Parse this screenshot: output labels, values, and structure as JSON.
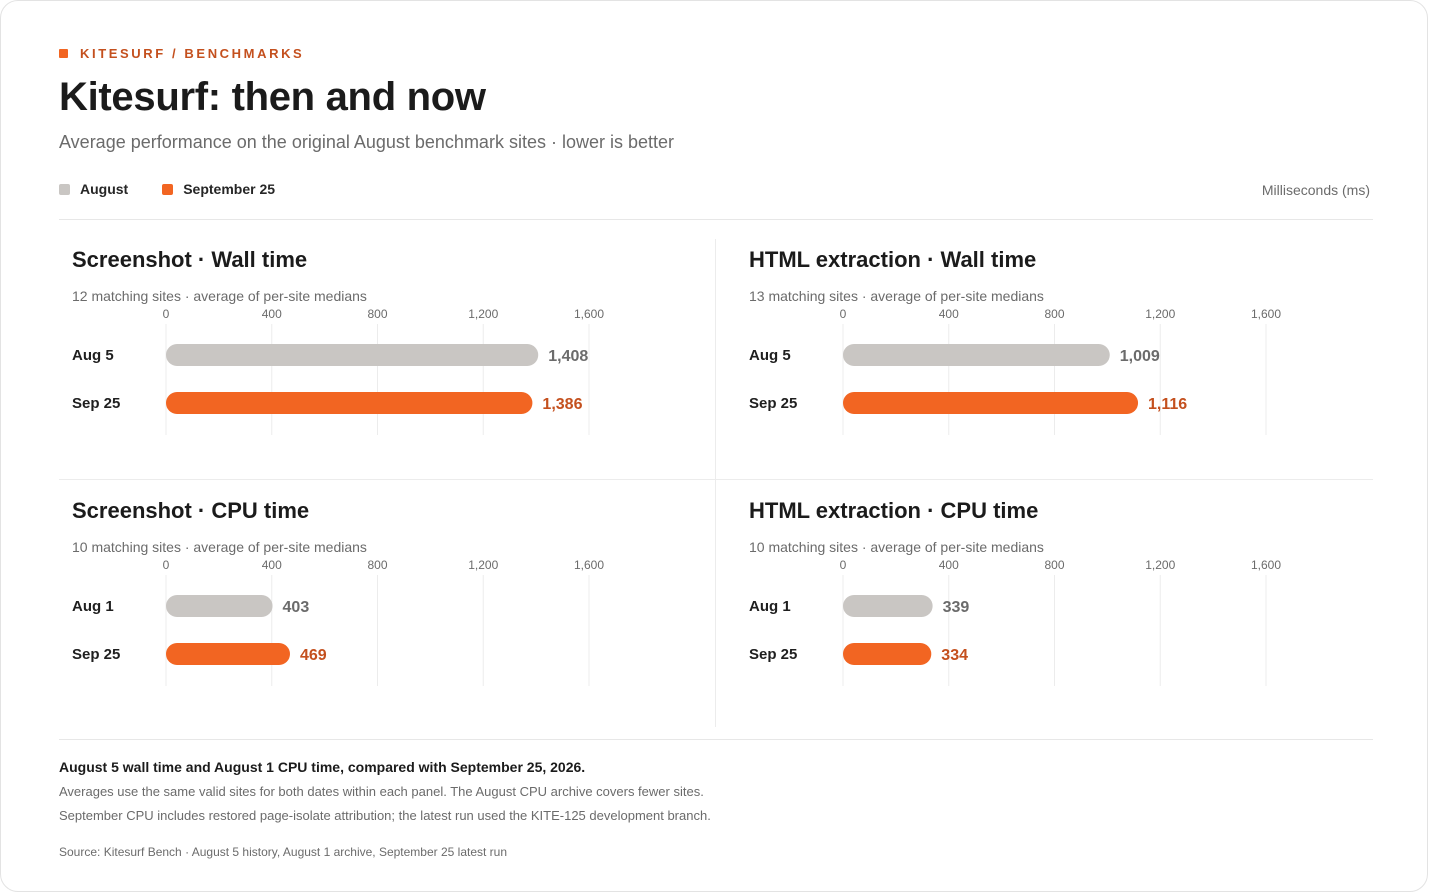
{
  "header": {
    "eyebrow": "KITESURF / BENCHMARKS",
    "title": "Kitesurf: then and now",
    "subtitle": "Average performance on the original August benchmark sites · lower is better",
    "units": "Milliseconds (ms)"
  },
  "legend": {
    "items": [
      {
        "label": "August",
        "color": "#c9c6c3"
      },
      {
        "label": "September 25",
        "color": "#f26522"
      }
    ]
  },
  "colors": {
    "august": "#c9c6c3",
    "september": "#f26522",
    "august_value": "#6b6b6b",
    "september_value": "#c4501e"
  },
  "chart_data": [
    {
      "type": "bar",
      "orientation": "horizontal",
      "title": "Screenshot · Wall time",
      "subtitle": "12 matching sites · average of per-site medians",
      "categories": [
        "Aug 5",
        "Sep 25"
      ],
      "values": [
        1408,
        1386
      ],
      "value_labels": [
        "1,408",
        "1,386"
      ],
      "xlim": [
        0,
        1600
      ],
      "ticks": [
        0,
        400,
        800,
        1200,
        1600
      ],
      "tick_labels": [
        "0",
        "400",
        "800",
        "1,200",
        "1,600"
      ],
      "grid": true
    },
    {
      "type": "bar",
      "orientation": "horizontal",
      "title": "HTML extraction · Wall time",
      "subtitle": "13 matching sites · average of per-site medians",
      "categories": [
        "Aug 5",
        "Sep 25"
      ],
      "values": [
        1009,
        1116
      ],
      "value_labels": [
        "1,009",
        "1,116"
      ],
      "xlim": [
        0,
        1600
      ],
      "ticks": [
        0,
        400,
        800,
        1200,
        1600
      ],
      "tick_labels": [
        "0",
        "400",
        "800",
        "1,200",
        "1,600"
      ],
      "grid": true
    },
    {
      "type": "bar",
      "orientation": "horizontal",
      "title": "Screenshot · CPU time",
      "subtitle": "10 matching sites · average of per-site medians",
      "categories": [
        "Aug 1",
        "Sep 25"
      ],
      "values": [
        403,
        469
      ],
      "value_labels": [
        "403",
        "469"
      ],
      "xlim": [
        0,
        1600
      ],
      "ticks": [
        0,
        400,
        800,
        1200,
        1600
      ],
      "tick_labels": [
        "0",
        "400",
        "800",
        "1,200",
        "1,600"
      ],
      "grid": true
    },
    {
      "type": "bar",
      "orientation": "horizontal",
      "title": "HTML extraction · CPU time",
      "subtitle": "10 matching sites · average of per-site medians",
      "categories": [
        "Aug 1",
        "Sep 25"
      ],
      "values": [
        339,
        334
      ],
      "value_labels": [
        "339",
        "334"
      ],
      "xlim": [
        0,
        1600
      ],
      "ticks": [
        0,
        400,
        800,
        1200,
        1600
      ],
      "tick_labels": [
        "0",
        "400",
        "800",
        "1,200",
        "1,600"
      ],
      "grid": true
    }
  ],
  "footer": {
    "headline": "August 5 wall time and August 1 CPU time, compared with September 25, 2026.",
    "notes": [
      "Averages use the same valid sites for both dates within each panel. The August CPU archive covers fewer sites.",
      "September CPU includes restored page-isolate attribution; the latest run used the KITE-125 development branch."
    ],
    "source": "Source: Kitesurf Bench · August 5 history, August 1 archive, September 25 latest run"
  }
}
